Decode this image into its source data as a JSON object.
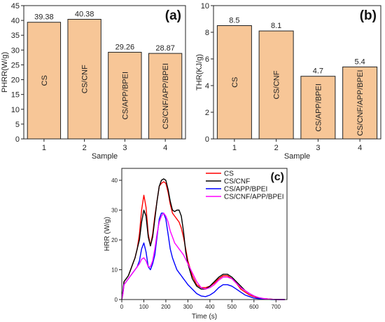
{
  "chart_data": [
    {
      "panel_label": "(a)",
      "type": "bar",
      "xlabel": "Sample",
      "ylabel": "PHRR(W/g)",
      "categories": [
        "1",
        "2",
        "3",
        "4"
      ],
      "values": [
        39.38,
        40.38,
        29.26,
        28.87
      ],
      "value_labels": [
        "39.38",
        "40.38",
        "29.26",
        "28.87"
      ],
      "bar_labels": [
        "CS",
        "CS/CNF",
        "CS/APP/BPEI",
        "CS/CNF/APP/BPEI"
      ],
      "ylim": [
        0,
        45
      ],
      "yticks": [
        0,
        5,
        10,
        15,
        20,
        25,
        30,
        35,
        40,
        45
      ],
      "bar_color": "#F7C697",
      "grid": false
    },
    {
      "panel_label": "(b)",
      "type": "bar",
      "xlabel": "Sample",
      "ylabel": "THR(KJ/g)",
      "categories": [
        "1",
        "2",
        "3",
        "4"
      ],
      "values": [
        8.5,
        8.1,
        4.7,
        5.4
      ],
      "value_labels": [
        "8.5",
        "8.1",
        "4.7",
        "5.4"
      ],
      "bar_labels": [
        "CS",
        "CS/CNF",
        "CS/APP/BPEI",
        "CS/CNF/APP/BPEI"
      ],
      "ylim": [
        0,
        10
      ],
      "yticks": [
        0,
        2,
        4,
        6,
        8,
        10
      ],
      "bar_color": "#F7C697",
      "grid": false
    },
    {
      "panel_label": "(c)",
      "type": "line",
      "xlabel": "Time (s)",
      "ylabel": "HRR (W/g)",
      "xlim": [
        0,
        750
      ],
      "ylim": [
        0,
        44
      ],
      "xticks": [
        0,
        100,
        200,
        300,
        400,
        500,
        600,
        700
      ],
      "yticks": [
        0,
        10,
        20,
        30,
        40
      ],
      "legend_position": "top-right",
      "grid": false,
      "series": [
        {
          "name": "CS",
          "color": "#FF0000",
          "x": [
            0,
            5,
            10,
            20,
            30,
            40,
            50,
            60,
            70,
            80,
            90,
            100,
            110,
            120,
            130,
            140,
            150,
            160,
            170,
            180,
            190,
            200,
            210,
            220,
            230,
            240,
            250,
            260,
            270,
            280,
            290,
            300,
            320,
            340,
            360,
            380,
            400,
            420,
            440,
            460,
            480,
            500,
            520,
            540,
            560,
            580,
            600,
            620,
            640,
            660,
            680,
            700,
            720,
            740
          ],
          "y": [
            0,
            2,
            6,
            7,
            8,
            10,
            12,
            14,
            17,
            22,
            30,
            35,
            31,
            22,
            18,
            22,
            28,
            33,
            38,
            39,
            39.5,
            39,
            36,
            32,
            29,
            28,
            27,
            26,
            24,
            21,
            17,
            13,
            8,
            5,
            4,
            4,
            4.5,
            5.5,
            7,
            8,
            8,
            7,
            5.5,
            3.5,
            2.5,
            1.5,
            1,
            0.5,
            0.3,
            0.2,
            0.1,
            0,
            0,
            0
          ]
        },
        {
          "name": "CS/CNF",
          "color": "#000000",
          "x": [
            0,
            5,
            10,
            20,
            30,
            40,
            50,
            60,
            70,
            80,
            90,
            100,
            110,
            120,
            130,
            140,
            150,
            160,
            170,
            180,
            190,
            200,
            210,
            220,
            230,
            240,
            250,
            260,
            270,
            280,
            290,
            300,
            320,
            340,
            360,
            380,
            400,
            420,
            440,
            460,
            480,
            500,
            520,
            540,
            560,
            580,
            600,
            620,
            640,
            660,
            680,
            700,
            720,
            740
          ],
          "y": [
            0,
            3,
            6,
            7,
            8,
            10,
            12,
            14,
            17,
            20,
            26,
            30,
            28,
            21,
            18,
            21,
            27,
            33,
            38,
            40,
            40.5,
            40,
            37,
            33,
            30,
            29.5,
            30,
            30,
            28,
            23,
            16,
            12,
            7,
            4.5,
            3.5,
            3.5,
            4.5,
            6,
            7.5,
            8.5,
            8.5,
            7.5,
            6,
            4.5,
            3,
            2,
            1.2,
            0.6,
            0.3,
            0.2,
            0.1,
            0,
            0,
            0
          ]
        },
        {
          "name": "CS/APP/BPEI",
          "color": "#0000FF",
          "x": [
            0,
            5,
            10,
            20,
            30,
            40,
            50,
            60,
            70,
            80,
            90,
            100,
            110,
            120,
            130,
            140,
            150,
            160,
            170,
            180,
            190,
            200,
            210,
            220,
            230,
            240,
            250,
            260,
            270,
            280,
            290,
            300,
            320,
            340,
            360,
            380,
            400,
            420,
            440,
            460,
            480,
            500,
            520,
            540,
            560,
            580,
            600,
            620,
            640,
            660,
            680,
            700,
            720,
            740
          ],
          "y": [
            0,
            2,
            5,
            6,
            7,
            8,
            9,
            10,
            11,
            13,
            17,
            19,
            16,
            11,
            10,
            12,
            15,
            21,
            27,
            29,
            29,
            27,
            22,
            17,
            14,
            12,
            10,
            9,
            8,
            7,
            6,
            5,
            3.5,
            2,
            1.2,
            1,
            1.5,
            2.5,
            4,
            5,
            5,
            4.5,
            3.5,
            2.5,
            1.5,
            1,
            0.5,
            0.3,
            0.2,
            0.1,
            0,
            0,
            0,
            0
          ]
        },
        {
          "name": "CS/CNF/APP/BPEI",
          "color": "#FF00FF",
          "x": [
            0,
            5,
            10,
            20,
            30,
            40,
            50,
            60,
            70,
            80,
            90,
            100,
            110,
            120,
            130,
            140,
            150,
            160,
            170,
            180,
            190,
            200,
            210,
            220,
            230,
            240,
            250,
            260,
            270,
            280,
            290,
            300,
            320,
            340,
            360,
            380,
            400,
            420,
            440,
            460,
            480,
            500,
            520,
            540,
            560,
            580,
            600,
            620,
            640,
            660,
            680,
            700,
            720,
            740
          ],
          "y": [
            0,
            2,
            5,
            6,
            7,
            8,
            9,
            10,
            11,
            12,
            13.5,
            14,
            13,
            11,
            11,
            13,
            17,
            22,
            26,
            28,
            29,
            28,
            26,
            23,
            21,
            19,
            18,
            17,
            16,
            15,
            13.5,
            12,
            9,
            6,
            4,
            3.5,
            4,
            5,
            6.5,
            7.5,
            7.5,
            7,
            5.5,
            4,
            3,
            2,
            1.2,
            0.7,
            0.4,
            0.2,
            0.1,
            0,
            0,
            0
          ]
        }
      ]
    }
  ]
}
